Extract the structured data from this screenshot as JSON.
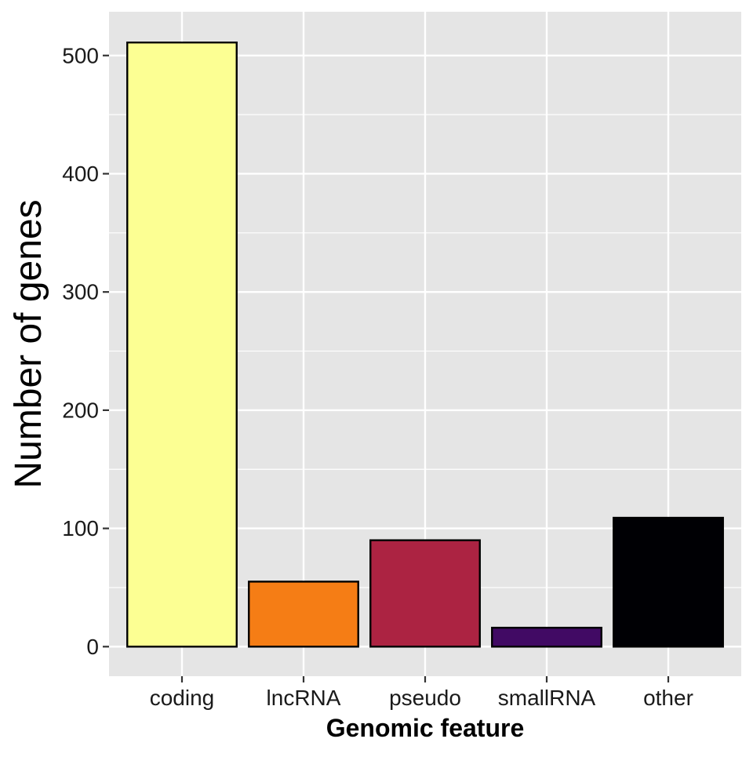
{
  "chart_data": {
    "type": "bar",
    "title": "",
    "xlabel": "Genomic feature",
    "ylabel": "Number of genes",
    "categories": [
      "coding",
      "lncRNA",
      "pseudo",
      "smallRNA",
      "other"
    ],
    "values": [
      511,
      55,
      90,
      16,
      109
    ],
    "bar_colors": [
      "#FCFF93",
      "#F57D15",
      "#AC2342",
      "#410A64",
      "#000004"
    ],
    "ylim": [
      -25,
      537
    ],
    "yticks": [
      0,
      100,
      200,
      300,
      400,
      500
    ],
    "ytick_labels": [
      "0",
      "100",
      "200",
      "300",
      "400",
      "500"
    ],
    "grid": true,
    "legend": "none",
    "panel_background": "#E5E5E5",
    "grid_color": "#FFFFFF",
    "bar_outline": "#000000"
  }
}
